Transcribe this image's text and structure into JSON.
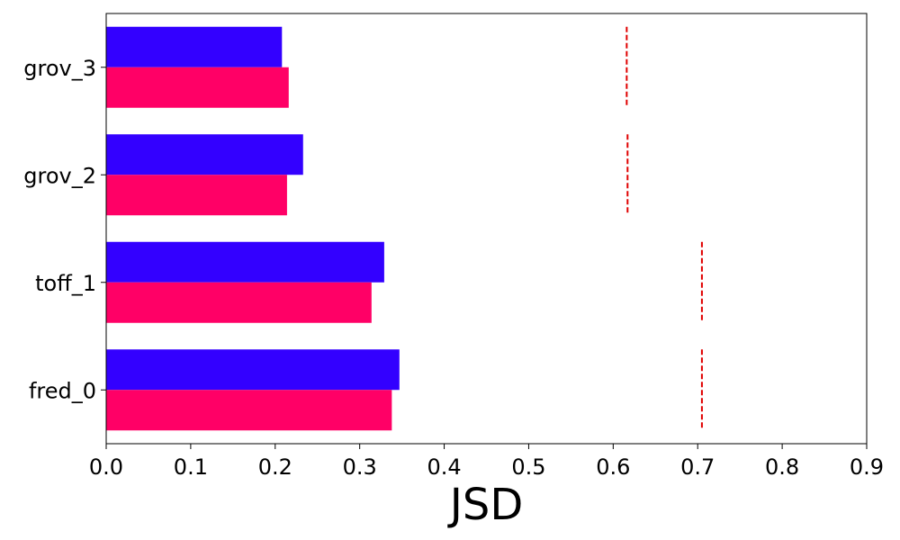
{
  "chart_data": {
    "type": "bar",
    "orientation": "horizontal",
    "categories": [
      "fred_0",
      "toff_1",
      "grov_2",
      "grov_3"
    ],
    "series": [
      {
        "color": "#3300ff",
        "values": [
          0.347,
          0.329,
          0.233,
          0.208
        ]
      },
      {
        "color": "#ff0066",
        "values": [
          0.338,
          0.314,
          0.214,
          0.216
        ]
      }
    ],
    "threshold_lines": {
      "color": "#e00000",
      "style": "dashed",
      "values": [
        0.705,
        0.705,
        0.617,
        0.616
      ]
    },
    "xlabel": "JSD",
    "ylabel": "",
    "title": "",
    "xlim": [
      0,
      0.9
    ],
    "xticks": [
      "0.0",
      "0.1",
      "0.2",
      "0.3",
      "0.4",
      "0.5",
      "0.6",
      "0.7",
      "0.8",
      "0.9"
    ],
    "grid": false,
    "legend": false
  }
}
